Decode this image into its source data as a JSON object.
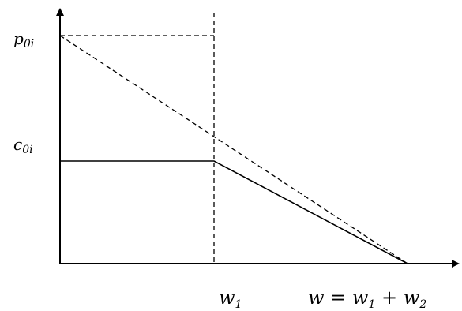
{
  "labels": {
    "y_upper": {
      "base": "p",
      "sub": "0i"
    },
    "y_lower": {
      "base": "c",
      "sub": "0i"
    },
    "x_mid": {
      "base": "w",
      "sub": "1"
    },
    "x_end": {
      "lhs": "w",
      "equals": " = ",
      "term1": "w",
      "term1_sub": "1",
      "plus": " + ",
      "term2": "w",
      "term2_sub": "2"
    }
  },
  "colors": {
    "line": "#000000",
    "background": "#ffffff"
  }
}
